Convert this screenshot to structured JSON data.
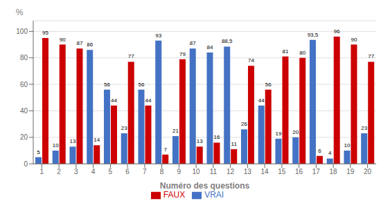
{
  "chart_data": {
    "type": "bar",
    "xlabel": "Numéro des questions",
    "ylabel": "%",
    "categories": [
      1,
      2,
      3,
      4,
      5,
      6,
      7,
      8,
      9,
      10,
      11,
      12,
      13,
      14,
      15,
      16,
      17,
      18,
      19,
      20
    ],
    "series": [
      {
        "name": "VRAI",
        "color": "#4472C4",
        "values": [
          5,
          10,
          13,
          86,
          56,
          23,
          56,
          93,
          21,
          87,
          84,
          88.5,
          26,
          44,
          19,
          20,
          93.5,
          4,
          10,
          23
        ],
        "value_labels": [
          "5",
          "10",
          "13",
          "86",
          "56",
          "23",
          "56",
          "93",
          "21",
          "87",
          "84",
          "88,5",
          "26",
          "44",
          "19",
          "20",
          "93,5",
          "4",
          "10",
          "23"
        ]
      },
      {
        "name": "FAUX",
        "color": "#CC0000",
        "values": [
          95,
          90,
          87,
          14,
          44,
          77,
          44,
          7,
          79,
          13,
          16,
          11,
          74,
          56,
          81,
          80,
          6,
          96,
          90,
          77
        ]
      }
    ],
    "ylim": [
      0,
      108
    ],
    "yticks": [
      0,
      20,
      40,
      60,
      80,
      100
    ],
    "grid": true,
    "legend": "bottom",
    "data_labels": true
  }
}
